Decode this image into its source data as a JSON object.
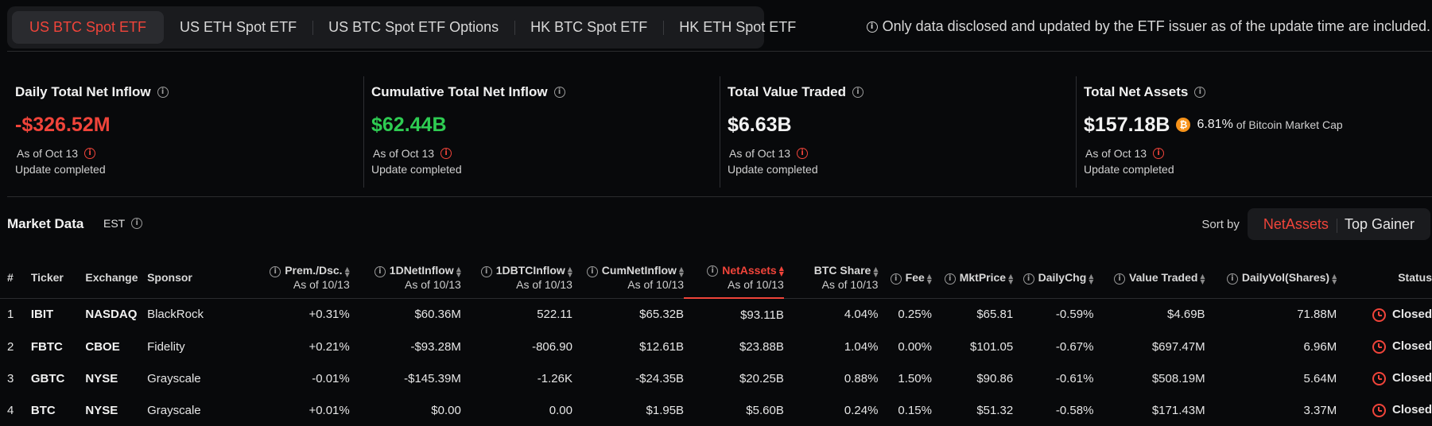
{
  "tabs": [
    {
      "label": "US BTC Spot ETF",
      "active": true
    },
    {
      "label": "US ETH Spot ETF"
    },
    {
      "label": "US BTC Spot ETF Options"
    },
    {
      "label": "HK BTC Spot ETF"
    },
    {
      "label": "HK ETH Spot ETF"
    }
  ],
  "notice": "Only data disclosed and updated by the ETF issuer as of the update time are included.",
  "cards": [
    {
      "title": "Daily Total Net Inflow",
      "value": "-$326.52M",
      "as_of": "As of Oct 13",
      "status": "Update completed"
    },
    {
      "title": "Cumulative Total Net Inflow",
      "value": "$62.44B",
      "as_of": "As of Oct 13",
      "status": "Update completed"
    },
    {
      "title": "Total Value Traded",
      "value": "$6.63B",
      "as_of": "As of Oct 13",
      "status": "Update completed"
    },
    {
      "title": "Total Net Assets",
      "value": "$157.18B",
      "coin": "₿",
      "mcap_pct": "6.81%",
      "mcap_label": "of Bitcoin Market Cap",
      "as_of": "As of Oct 13",
      "status": "Update completed"
    }
  ],
  "market": {
    "title": "Market Data",
    "timezone": "EST"
  },
  "sort": {
    "label": "Sort by",
    "options": [
      "NetAssets",
      "Top Gainer"
    ],
    "active": "NetAssets"
  },
  "colors": {
    "accent": "#f0443a",
    "positive": "#2ecc52",
    "negative": "#f0443a",
    "btc": "#f7931a"
  },
  "table": {
    "headers": {
      "idx": "#",
      "ticker": "Ticker",
      "exchange": "Exchange",
      "sponsor": "Sponsor",
      "prem": "Prem./Dsc.",
      "prem_sub": "As of 10/13",
      "inflow": "1DNetInflow",
      "inflow_sub": "As of 10/13",
      "btcinflow": "1DBTCInflow",
      "btcinflow_sub": "As of 10/13",
      "cum": "CumNetInflow",
      "cum_sub": "As of 10/13",
      "assets": "NetAssets",
      "assets_sub": "As of 10/13",
      "share": "BTC Share",
      "share_sub": "As of 10/13",
      "fee": "Fee",
      "price": "MktPrice",
      "chg": "DailyChg",
      "traded": "Value Traded",
      "vol": "DailyVol(Shares)",
      "status": "Status"
    },
    "rows": [
      {
        "idx": "1",
        "ticker": "IBIT",
        "exchange": "NASDAQ",
        "sponsor": "BlackRock",
        "prem": "+0.31%",
        "inflow": "$60.36M",
        "btcinflow": "522.11",
        "cum": "$65.32B",
        "assets": "$93.11B",
        "share": "4.04%",
        "fee": "0.25%",
        "price": "$65.81",
        "chg": "-0.59%",
        "traded": "$4.69B",
        "vol": "71.88M",
        "status": "Closed"
      },
      {
        "idx": "2",
        "ticker": "FBTC",
        "exchange": "CBOE",
        "sponsor": "Fidelity",
        "prem": "+0.21%",
        "inflow": "-$93.28M",
        "btcinflow": "-806.90",
        "cum": "$12.61B",
        "assets": "$23.88B",
        "share": "1.04%",
        "fee": "0.00%",
        "price": "$101.05",
        "chg": "-0.67%",
        "traded": "$697.47M",
        "vol": "6.96M",
        "status": "Closed"
      },
      {
        "idx": "3",
        "ticker": "GBTC",
        "exchange": "NYSE",
        "sponsor": "Grayscale",
        "prem": "-0.01%",
        "inflow": "-$145.39M",
        "btcinflow": "-1.26K",
        "cum": "-$24.35B",
        "assets": "$20.25B",
        "share": "0.88%",
        "fee": "1.50%",
        "price": "$90.86",
        "chg": "-0.61%",
        "traded": "$508.19M",
        "vol": "5.64M",
        "status": "Closed"
      },
      {
        "idx": "4",
        "ticker": "BTC",
        "exchange": "NYSE",
        "sponsor": "Grayscale",
        "prem": "+0.01%",
        "inflow": "$0.00",
        "btcinflow": "0.00",
        "cum": "$1.95B",
        "assets": "$5.60B",
        "share": "0.24%",
        "fee": "0.15%",
        "price": "$51.32",
        "chg": "-0.58%",
        "traded": "$171.43M",
        "vol": "3.37M",
        "status": "Closed"
      }
    ]
  }
}
